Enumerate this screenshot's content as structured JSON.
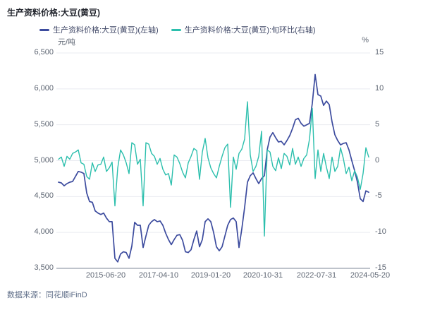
{
  "title": "生产资料价格:大豆(黄豆)",
  "legend": [
    {
      "label": "生产资料价格:大豆(黄豆)(左轴)",
      "color": "#3c4b9e"
    },
    {
      "label": "生产资料价格:大豆(黄豆):旬环比(右轴)",
      "color": "#2cbfad"
    }
  ],
  "footer": {
    "source": "数据来源：同花顺iFinD"
  },
  "colors": {
    "price_line": "#3c4b9e",
    "pct_line": "#2cbfad",
    "grid": "#e9ebf1",
    "axis": "#a9afba",
    "tick_text": "#5e6673",
    "title_text": "#23262e",
    "legend_text": "#3f4766",
    "footer_text": "#5f6e88"
  },
  "chart_data": {
    "type": "line",
    "title": "生产资料价格:大豆(黄豆)",
    "ylabel_left": "元/吨",
    "ylabel_right": "%",
    "ylim_left": [
      3500,
      6500
    ],
    "ylim_right": [
      -15,
      15
    ],
    "y_ticks_left": [
      "6,500",
      "6,000",
      "5,500",
      "5,000",
      "4,500",
      "4,000",
      "3,500"
    ],
    "y_ticks_right": [
      "15",
      "10",
      "5",
      "0",
      "-5",
      "-10",
      "-15"
    ],
    "x_tick_labels": [
      "2015-06-20",
      "2017-04-10",
      "2019-01-20",
      "2020-10-31",
      "2022-07-31",
      "2024-05-20"
    ],
    "grid": true,
    "legend_position": "top",
    "x_span_note": "10-day (旬) frequency series from early 2014 to 2024-05-20, sampled to 111 points",
    "series": [
      {
        "name": "生产资料价格:大豆(黄豆)(左轴)",
        "axis": "left",
        "color": "#3c4b9e",
        "values": [
          4700,
          4690,
          4650,
          4680,
          4700,
          4710,
          4780,
          4850,
          4840,
          4820,
          4550,
          4430,
          4420,
          4300,
          4270,
          4250,
          4270,
          4200,
          4150,
          4150,
          3640,
          3590,
          3700,
          3730,
          3720,
          3640,
          3810,
          4140,
          4100,
          4100,
          3790,
          3950,
          4100,
          4150,
          4180,
          4150,
          4160,
          4100,
          3990,
          3900,
          3830,
          3900,
          3960,
          3970,
          3890,
          3730,
          3720,
          3760,
          3900,
          4020,
          3800,
          3900,
          4150,
          4190,
          4150,
          4000,
          3800,
          3745,
          3800,
          3950,
          4100,
          4180,
          4200,
          4150,
          3790,
          4050,
          4350,
          4700,
          4790,
          4830,
          4750,
          4680,
          4750,
          4790,
          5150,
          5330,
          5390,
          5320,
          5260,
          5270,
          5220,
          5280,
          5350,
          5450,
          5570,
          5590,
          5520,
          5480,
          5500,
          5520,
          5800,
          6200,
          5920,
          5900,
          5770,
          5830,
          5780,
          5540,
          5360,
          5280,
          5220,
          5240,
          5250,
          5150,
          5000,
          4860,
          4700,
          4470,
          4430,
          4580,
          4560
        ]
      },
      {
        "name": "生产资料价格:大豆(黄豆):旬环比(右轴)",
        "axis": "right",
        "color": "#2cbfad",
        "values": [
          0.2,
          0.5,
          -0.8,
          0.6,
          0.2,
          1.0,
          1.2,
          1.5,
          -0.3,
          -0.5,
          -2.2,
          -2.6,
          -0.3,
          -1.5,
          -0.6,
          -0.5,
          0.5,
          -1.5,
          -1.0,
          -0.2,
          -6.3,
          -1.0,
          1.5,
          0.8,
          -0.3,
          -1.8,
          2.5,
          2.2,
          -0.5,
          0.2,
          -6.3,
          2.5,
          2.3,
          1.0,
          0.6,
          -0.5,
          0.3,
          -1.2,
          -2.0,
          -1.8,
          -3.4,
          0.8,
          0.5,
          -0.4,
          -1.6,
          -2.4,
          -0.3,
          0.6,
          1.7,
          1.4,
          -2.6,
          1.2,
          3.1,
          0.4,
          -1.0,
          -1.8,
          -2.4,
          -0.8,
          0.6,
          1.8,
          2.3,
          -6.5,
          0.5,
          -1.2,
          1.0,
          1.6,
          3.0,
          8.2,
          0.8,
          -1.5,
          -0.8,
          0.6,
          4.1,
          -10.5,
          1.5,
          1.2,
          -0.8,
          -1.4,
          0.4,
          -1.1,
          1.0,
          0.6,
          -0.6,
          1.7,
          -0.5,
          0.5,
          -0.8,
          0.3,
          0.8,
          3.0,
          7.3,
          -2.5,
          1.5,
          -1.5,
          1.0,
          -0.9,
          -2.5,
          0.5,
          -1.5,
          -0.8,
          1.8,
          0.3,
          -1.8,
          -0.9,
          -2.8,
          -1.4,
          -2.3,
          -4.0,
          -1.8,
          1.8,
          0.5
        ]
      }
    ]
  }
}
